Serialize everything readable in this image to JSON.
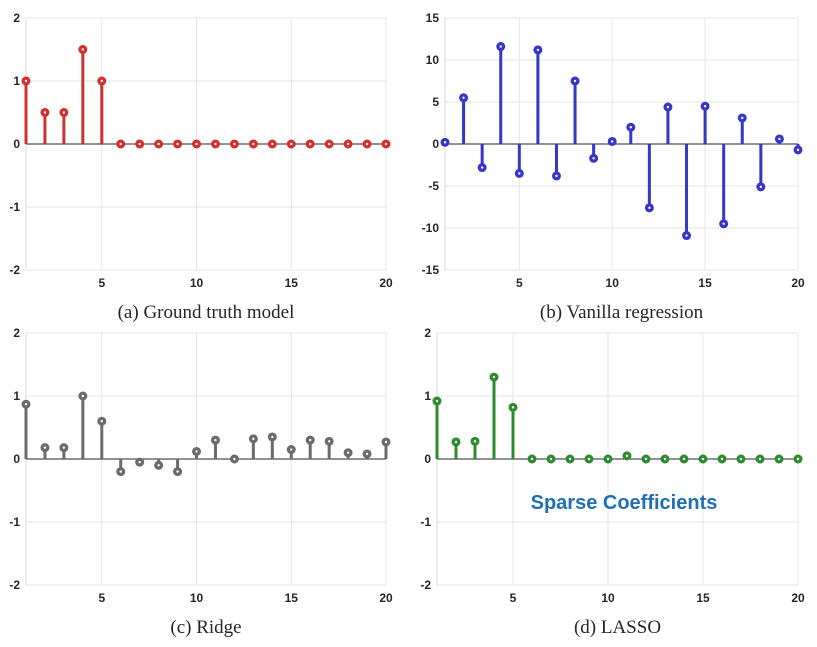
{
  "chart_data": [
    {
      "type": "stem",
      "caption": "(a) Ground truth model",
      "color": "#d03030",
      "xlim": [
        1,
        20
      ],
      "ylim": [
        -2,
        2
      ],
      "xticks": [
        5,
        10,
        15,
        20
      ],
      "yticks": [
        -2,
        -1,
        0,
        1,
        2
      ],
      "grid": true,
      "x": [
        1,
        2,
        3,
        4,
        5,
        6,
        7,
        8,
        9,
        10,
        11,
        12,
        13,
        14,
        15,
        16,
        17,
        18,
        19,
        20
      ],
      "values": [
        1,
        0.5,
        0.5,
        1.5,
        1,
        0,
        0,
        0,
        0,
        0,
        0,
        0,
        0,
        0,
        0,
        0,
        0,
        0,
        0,
        0
      ]
    },
    {
      "type": "stem",
      "caption": "(b) Vanilla regression",
      "color": "#3636c8",
      "xlim": [
        1,
        20
      ],
      "ylim": [
        -15,
        15
      ],
      "xticks": [
        5,
        10,
        15,
        20
      ],
      "yticks": [
        -15,
        -10,
        -5,
        0,
        5,
        10,
        15
      ],
      "grid": true,
      "x": [
        1,
        2,
        3,
        4,
        5,
        6,
        7,
        8,
        9,
        10,
        11,
        12,
        13,
        14,
        15,
        16,
        17,
        18,
        19,
        20
      ],
      "values": [
        0.2,
        5.5,
        -2.8,
        11.6,
        -3.5,
        11.2,
        -3.8,
        7.5,
        -1.7,
        0.3,
        2,
        -7.6,
        4.4,
        -10.9,
        4.5,
        -9.5,
        3.1,
        -5.1,
        0.6,
        -0.7
      ]
    },
    {
      "type": "stem",
      "caption": "(c) Ridge",
      "color": "#6b6b6b",
      "xlim": [
        1,
        20
      ],
      "ylim": [
        -2,
        2
      ],
      "xticks": [
        5,
        10,
        15,
        20
      ],
      "yticks": [
        -2,
        -1,
        0,
        1,
        2
      ],
      "grid": true,
      "x": [
        1,
        2,
        3,
        4,
        5,
        6,
        7,
        8,
        9,
        10,
        11,
        12,
        13,
        14,
        15,
        16,
        17,
        18,
        19,
        20
      ],
      "values": [
        0.87,
        0.18,
        0.18,
        1.0,
        0.6,
        -0.2,
        -0.05,
        -0.1,
        -0.2,
        0.12,
        0.3,
        0.0,
        0.32,
        0.35,
        0.15,
        0.3,
        0.28,
        0.1,
        0.08,
        0.27
      ]
    },
    {
      "type": "stem",
      "caption": "(d) LASSO",
      "color": "#2e8b2e",
      "xlim": [
        1,
        20
      ],
      "ylim": [
        -2,
        2
      ],
      "xticks": [
        5,
        10,
        15,
        20
      ],
      "yticks": [
        -2,
        -1,
        0,
        1,
        2
      ],
      "grid": true,
      "annotation": "Sparse Coefficients",
      "x": [
        1,
        2,
        3,
        4,
        5,
        6,
        7,
        8,
        9,
        10,
        11,
        12,
        13,
        14,
        15,
        16,
        17,
        18,
        19,
        20
      ],
      "values": [
        0.92,
        0.27,
        0.28,
        1.3,
        0.82,
        0,
        0,
        0,
        0,
        0,
        0.05,
        0,
        0,
        0,
        0,
        0,
        0,
        0,
        0,
        0
      ]
    }
  ]
}
